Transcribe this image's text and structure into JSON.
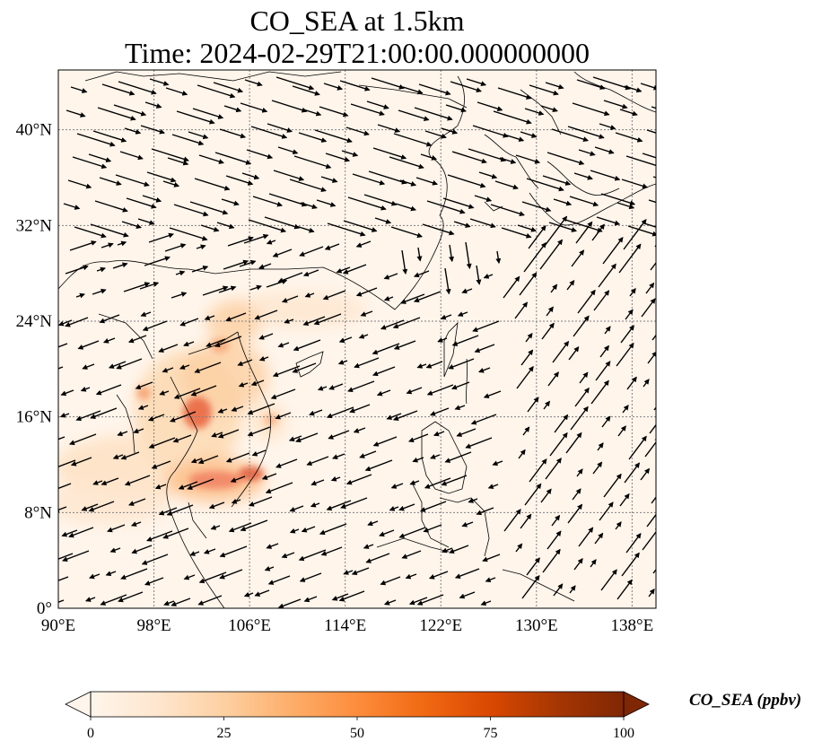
{
  "title": {
    "line1": "CO_SEA at 1.5km",
    "line2": "Time: 2024-02-29T21:00:00.000000000"
  },
  "map": {
    "lon_range": [
      90,
      140
    ],
    "lat_range": [
      0,
      45
    ],
    "lon_ticks": [
      {
        "value": 90,
        "label": "90°E"
      },
      {
        "value": 98,
        "label": "98°E"
      },
      {
        "value": 106,
        "label": "106°E"
      },
      {
        "value": 114,
        "label": "114°E"
      },
      {
        "value": 122,
        "label": "122°E"
      },
      {
        "value": 130,
        "label": "130°E"
      },
      {
        "value": 138,
        "label": "138°E"
      }
    ],
    "lat_ticks": [
      {
        "value": 0,
        "label": "0°"
      },
      {
        "value": 8,
        "label": "8°N"
      },
      {
        "value": 16,
        "label": "16°N"
      },
      {
        "value": 24,
        "label": "24°N"
      },
      {
        "value": 32,
        "label": "32°N"
      },
      {
        "value": 40,
        "label": "40°N"
      }
    ],
    "gridlines": true
  },
  "colorbar": {
    "label": "CO_SEA (ppbv)",
    "ticks": [
      {
        "value": 0,
        "label": "0"
      },
      {
        "value": 25,
        "label": "25"
      },
      {
        "value": 50,
        "label": "50"
      },
      {
        "value": 75,
        "label": "75"
      },
      {
        "value": 100,
        "label": "100"
      }
    ],
    "range": [
      0,
      100
    ],
    "extend": "both",
    "colormap": [
      "#fff5eb",
      "#fee6ce",
      "#fdd0a2",
      "#fdae6b",
      "#fd8d3c",
      "#f16913",
      "#d94801",
      "#a63603",
      "#7f2704"
    ]
  },
  "colors": {
    "background": "#fff5eb",
    "coast": "#000000",
    "vector": "#000000"
  }
}
